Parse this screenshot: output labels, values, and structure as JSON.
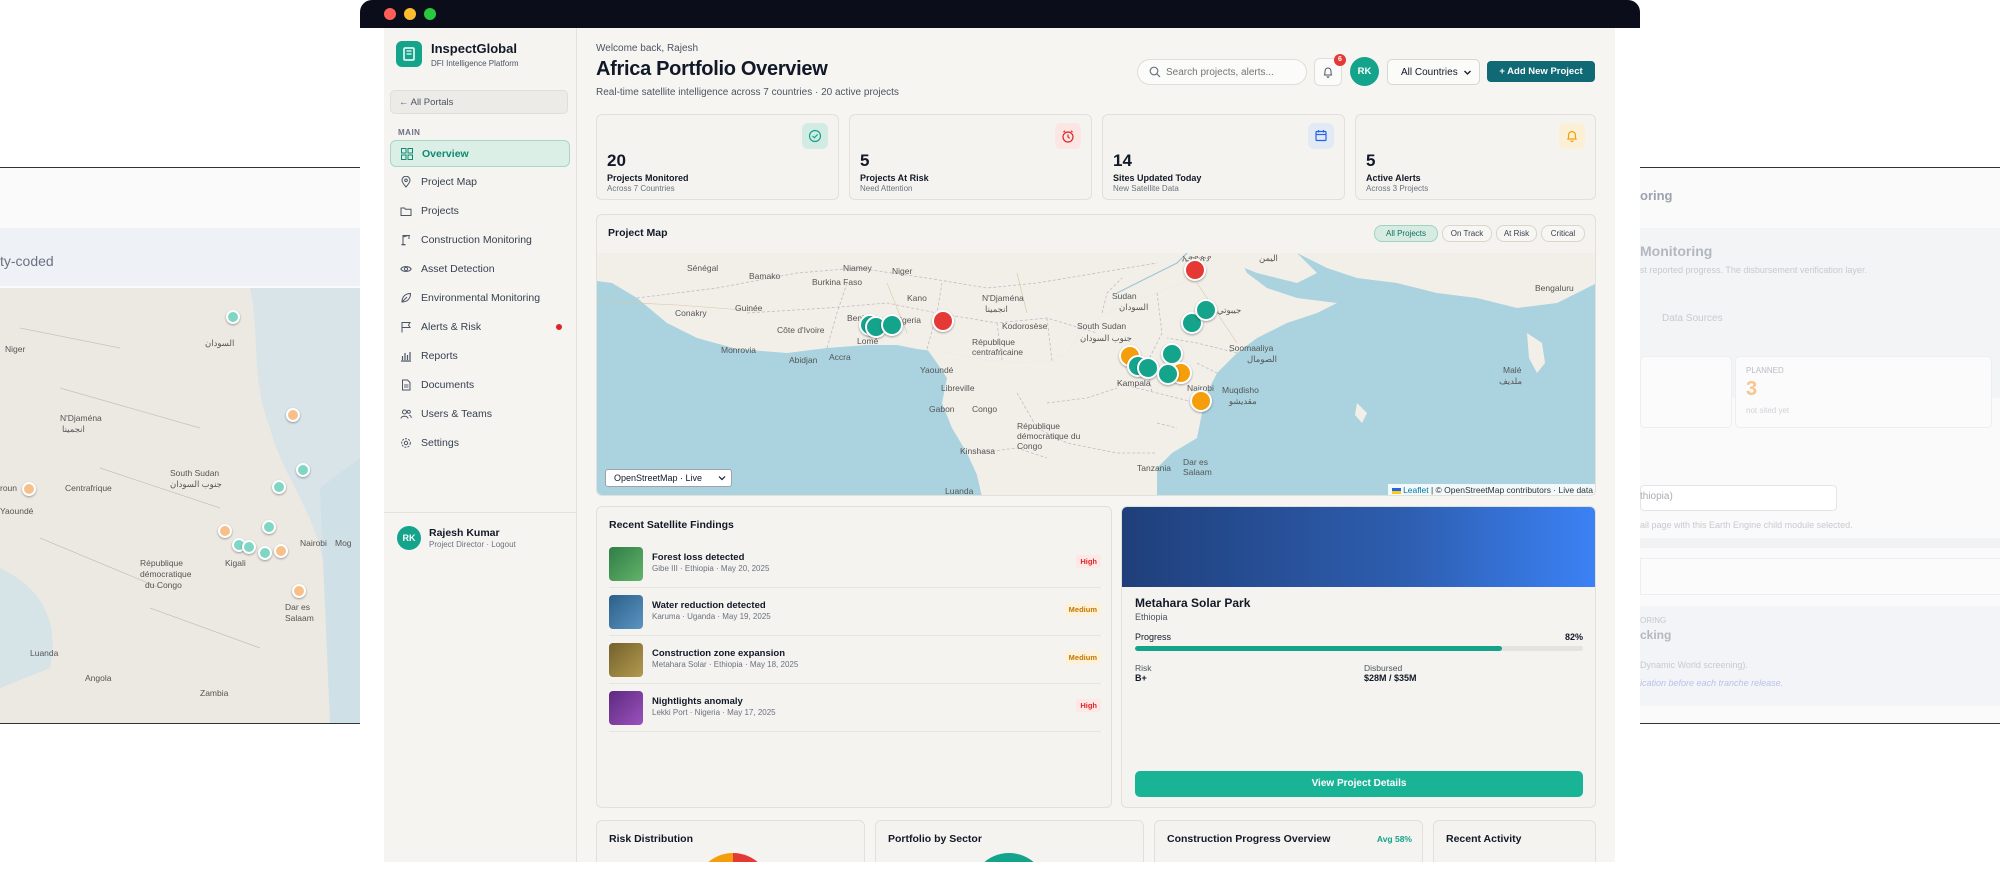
{
  "background_left": {
    "subtitle_fragment": "ty-coded",
    "map_labels": [
      "Niger",
      "السودان",
      "N'Djaména",
      "انجمينا",
      "South Sudan",
      "جنوب السودان",
      "roun",
      "Centrafrique",
      "Yaoundé",
      "République",
      "démocratique",
      "du Congo",
      "Kigali",
      "Dar es",
      "Salaam",
      "Luanda",
      "Angola",
      "Zambia",
      "Nairobi",
      "Mog"
    ]
  },
  "background_right": {
    "title_fragment": "oring",
    "heading_fragment": "Monitoring",
    "desc_fragment": "st reported progress. The disbursement verification layer.",
    "tab_label": "Data Sources",
    "planned_label": "PLANNED",
    "planned_value": "3",
    "planned_sub": "not sited yet",
    "select_value": "thiopia)",
    "helper_text": "ail page with this Earth Engine child module selected.",
    "card_kicker": "ORING",
    "card_title": "cking",
    "card_line1": "Dynamic World screening).",
    "card_line2": "ication before each tranche release."
  },
  "window": {
    "controls": [
      "close",
      "minimize",
      "maximize"
    ]
  },
  "sidebar": {
    "brand_title": "InspectGlobal",
    "brand_subtitle": "DFI Intelligence Platform",
    "back_label": "← All Portals",
    "section_label": "MAIN",
    "items": [
      {
        "label": "Overview",
        "icon": "grid-icon",
        "active": true
      },
      {
        "label": "Project Map",
        "icon": "map-pin-icon"
      },
      {
        "label": "Projects",
        "icon": "folder-icon"
      },
      {
        "label": "Construction Monitoring",
        "icon": "crane-icon"
      },
      {
        "label": "Asset Detection",
        "icon": "eye-icon"
      },
      {
        "label": "Environmental Monitoring",
        "icon": "leaf-icon"
      },
      {
        "label": "Alerts & Risk",
        "icon": "flag-icon",
        "badge_dot": true
      },
      {
        "label": "Reports",
        "icon": "bar-chart-icon"
      },
      {
        "label": "Documents",
        "icon": "document-icon"
      },
      {
        "label": "Users & Teams",
        "icon": "users-icon"
      },
      {
        "label": "Settings",
        "icon": "gear-icon"
      }
    ],
    "user": {
      "initials": "RK",
      "name": "Rajesh Kumar",
      "role": "Project Director",
      "separator": "·",
      "logout": "Logout"
    }
  },
  "header": {
    "welcome": "Welcome back, Rajesh",
    "title": "Africa Portfolio Overview",
    "subtitle": "Real-time satellite intelligence across 7 countries · 20 active projects",
    "search_placeholder": "Search projects, alerts...",
    "notification_count": "6",
    "avatar_initials": "RK",
    "country_select": "All Countries",
    "add_button": "+ Add New Project"
  },
  "stats": [
    {
      "value": "20",
      "label": "Projects Monitored",
      "sub": "Across 7 Countries",
      "icon": "check-circle-icon",
      "accent": "#14a38b"
    },
    {
      "value": "5",
      "label": "Projects At Risk",
      "sub": "Need Attention",
      "icon": "alarm-clock-icon",
      "accent": "#dc2626"
    },
    {
      "value": "14",
      "label": "Sites Updated Today",
      "sub": "New Satellite Data",
      "icon": "calendar-icon",
      "accent": "#2563eb"
    },
    {
      "value": "5",
      "label": "Active Alerts",
      "sub": "Across 3 Projects",
      "icon": "bell-icon",
      "accent": "#f59e0b"
    }
  ],
  "map": {
    "title": "Project Map",
    "filters": [
      "All Projects",
      "On Track",
      "At Risk",
      "Critical"
    ],
    "active_filter": "All Projects",
    "layer_select": "OpenStreetMap · Live",
    "attribution": {
      "leaflet": "Leaflet",
      "rest": " | © OpenStreetMap contributors · Live data"
    },
    "labels": [
      "Sénégal",
      "Bamako",
      "Burkina Faso",
      "Niamey",
      "Niger",
      "Kano",
      "N'Djaména",
      "انجمينا",
      "Sudan",
      "السودان",
      "Conakry",
      "Guinée",
      "Côte d'Ivoire",
      "Monrovia",
      "Abidjan",
      "Accra",
      "Lomé",
      "Benin",
      "Nigeria",
      "Yaoundé",
      "Kodorosèse",
      "South Sudan",
      "جنوب السودان",
      "République centrafricaine",
      "Libreville",
      "Gabon",
      "Congo",
      "Kinshasa",
      "République démocratique du Congo",
      "Luanda",
      "Tanzania",
      "Dar es Salaam",
      "Kampala",
      "Nairobi",
      "Soomaaliya",
      "الصومال",
      "Muqdisho",
      "مقديشو",
      "Bengaluru",
      "اليمن",
      "جيبوتي",
      "Malé",
      "ملديف",
      "ኢትዮጵያ"
    ],
    "status_colors": {
      "on_track": "#14a38b",
      "at_risk": "#f59e0b",
      "critical": "#e53935"
    }
  },
  "findings": {
    "title": "Recent Satellite Findings",
    "items": [
      {
        "title": "Forest loss detected",
        "meta": "Gibe III · Ethiopia · May 20, 2025",
        "severity": "High",
        "sev_color": "#dc2626",
        "sev_bg": "#fde8e6",
        "thumb": "#3f9b56"
      },
      {
        "title": "Water reduction detected",
        "meta": "Karuma · Uganda · May 19, 2025",
        "severity": "Medium",
        "sev_color": "#c27803",
        "sev_bg": "#fdf1d8",
        "thumb": "#3d78a4"
      },
      {
        "title": "Construction zone expansion",
        "meta": "Metahara Solar · Ethiopia · May 18, 2025",
        "severity": "Medium",
        "sev_color": "#c27803",
        "sev_bg": "#fdf1d8",
        "thumb": "#8f7a3a"
      },
      {
        "title": "Nightlights anomaly",
        "meta": "Lekki Port · Nigeria · May 17, 2025",
        "severity": "High",
        "sev_color": "#dc2626",
        "sev_bg": "#fde8e6",
        "thumb": "#7b3c9c"
      }
    ]
  },
  "project_card": {
    "name": "Metahara Solar Park",
    "country": "Ethiopia",
    "progress_label": "Progress",
    "progress_value": "82%",
    "progress_fraction": 0.82,
    "risk_label": "Risk",
    "risk_value": "B+",
    "disbursed_label": "Disbursed",
    "disbursed_value": "$28M / $35M",
    "button": "View Project Details"
  },
  "bottom_cards": [
    {
      "title": "Risk Distribution"
    },
    {
      "title": "Portfolio by Sector"
    },
    {
      "title": "Construction Progress Overview",
      "badge": "Avg 58%"
    },
    {
      "title": "Recent Activity"
    }
  ]
}
